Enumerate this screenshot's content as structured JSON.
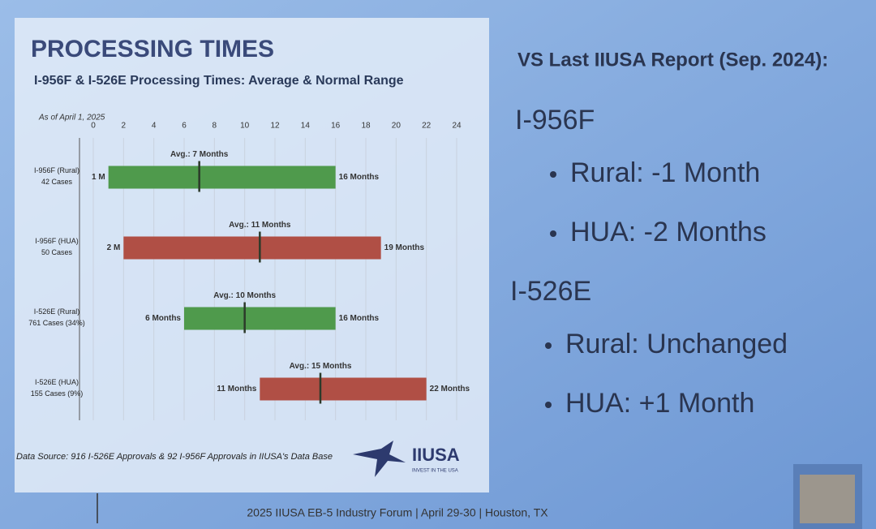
{
  "slide": {
    "title": "PROCESSING TIMES",
    "source": "Data Source: 916 I-526E Approvals & 92 I-956F Approvals in IIUSA's Data Base",
    "logo_name": "IIUSA",
    "logo_tagline": "INVEST IN THE USA",
    "footer": "2025 IIUSA EB-5 Industry Forum | April 29-30 | Houston, TX"
  },
  "chart_data": {
    "type": "range-bar",
    "title": "I-956F & I-526E Processing Times: Average & Normal Range",
    "subtitle": "As of April 1, 2025",
    "categories": [
      "I-956F (Rural)",
      "I-956F (HUA)",
      "I-526E (Rural)",
      "I-526E (HUA)"
    ],
    "category_notes": [
      "42 Cases",
      "50 Cases",
      "761 Cases (34%)",
      "155 Cases (9%)"
    ],
    "colors": [
      "#4f9a4c",
      "#b04f45",
      "#4f9a4c",
      "#b04f45"
    ],
    "low": {
      "values": [
        1,
        2,
        6,
        11
      ],
      "value_labels": [
        "1 M",
        "2 M",
        "6 Months",
        "11 Months"
      ]
    },
    "high": {
      "values": [
        16,
        19,
        16,
        22
      ],
      "value_labels": [
        "16 Months",
        "19 Months",
        "16 Months",
        "22 Months"
      ]
    },
    "avg": {
      "values": [
        7,
        11,
        10,
        15
      ],
      "value_labels": [
        "Avg.: 7 Months",
        "Avg.: 11 Months",
        "Avg.: 10 Months",
        "Avg.: 15 Months"
      ]
    },
    "xlim": [
      0,
      24
    ],
    "xticks": [
      0,
      2,
      4,
      6,
      8,
      10,
      12,
      14,
      16,
      18,
      20,
      22,
      24
    ],
    "grid": true
  },
  "comparison": {
    "heading": "VS Last IIUSA Report (Sep. 2024):",
    "sections": [
      {
        "title": "I-956F",
        "items": [
          "Rural: -1 Month",
          "HUA: -2 Months"
        ]
      },
      {
        "title": "I-526E",
        "items": [
          "Rural: Unchanged",
          "HUA: +1 Month"
        ]
      }
    ]
  }
}
